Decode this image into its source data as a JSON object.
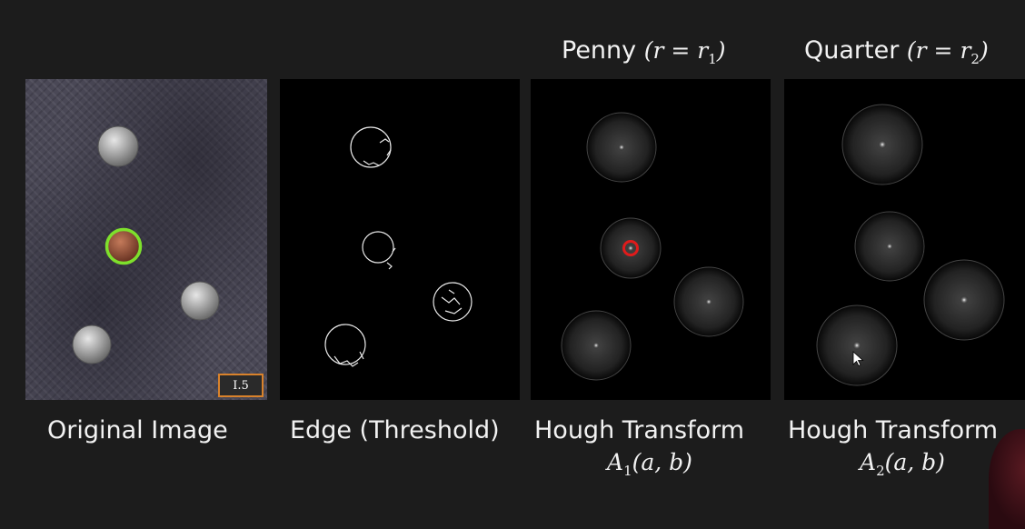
{
  "titles": {
    "penny_text": "Penny",
    "penny_math": "(r = r",
    "penny_sub": "1",
    "penny_close": ")",
    "quarter_text": "Quarter",
    "quarter_math": "(r = r",
    "quarter_sub": "2",
    "quarter_close": ")"
  },
  "captions": {
    "original": "Original Image",
    "edge": "Edge (Threshold)",
    "hough1": "Hough Transform",
    "hough1_sub_a": "A",
    "hough1_sub_idx": "1",
    "hough1_sub_args": "(a, b)",
    "hough2": "Hough Transform",
    "hough2_sub_a": "A",
    "hough2_sub_idx": "2",
    "hough2_sub_args": "(a, b)"
  },
  "image_label": "I.5",
  "colors": {
    "highlight_green": "#7ee02c",
    "highlight_red": "#e01b1b",
    "label_border": "#d9822b"
  }
}
